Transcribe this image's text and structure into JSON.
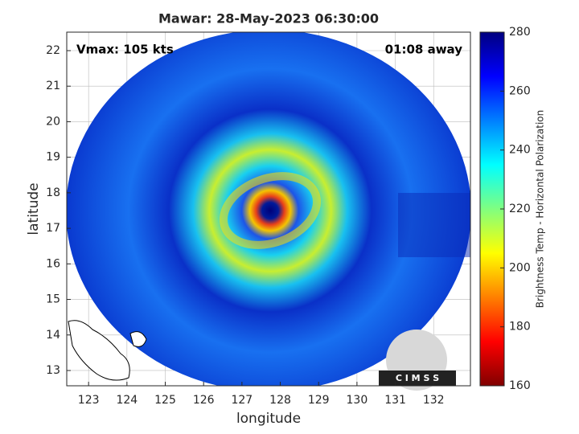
{
  "chart_data": {
    "type": "map",
    "title": "Mawar: 28-May-2023 06:30:00",
    "annotations": [
      "Vmax: 105 kts",
      "01:08 away"
    ],
    "xlabel": "longitude",
    "ylabel": "latitude",
    "xlim": [
      122.43,
      132.96
    ],
    "ylim": [
      12.57,
      22.52
    ],
    "xticks": [
      123,
      124,
      125,
      126,
      127,
      128,
      129,
      130,
      131,
      132
    ],
    "yticks": [
      13,
      14,
      15,
      16,
      17,
      18,
      19,
      20,
      21,
      22
    ],
    "grid": true,
    "colorbar": {
      "label": "Brightness Temp - Horizontal Polarization",
      "lim": [
        160,
        280
      ],
      "ticks": [
        160,
        180,
        200,
        220,
        240,
        260,
        280
      ]
    },
    "logo_text": "C I M S S"
  }
}
